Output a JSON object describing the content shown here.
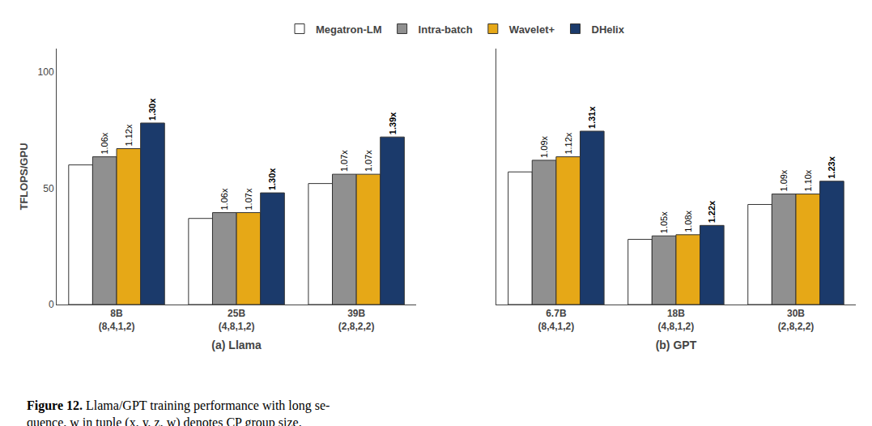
{
  "chart_data": [
    {
      "type": "bar",
      "title": "(a) Llama",
      "ylabel": "TFLOPS/GPU",
      "categories": [
        "8B\n(8,4,1,2)",
        "25B\n(4,8,1,2)",
        "39B\n(2,8,2,2)"
      ],
      "series": [
        {
          "name": "Megatron-LM",
          "color": "#ffffff",
          "values": [
            60.0,
            37.0,
            52.0
          ]
        },
        {
          "name": "Intra-batch",
          "color": "#909090",
          "values": [
            63.5,
            39.5,
            56.0
          ],
          "annotations": [
            "1.06x",
            "1.06x",
            "1.07x"
          ]
        },
        {
          "name": "Wavelet+",
          "color": "#e6a817",
          "values": [
            67.0,
            39.5,
            56.0
          ],
          "annotations": [
            "1.12x",
            "1.07x",
            "1.07x"
          ]
        },
        {
          "name": "DHelix",
          "color": "#1b3a6b",
          "values": [
            78.0,
            48.0,
            72.0
          ],
          "annotations": [
            "1.30x",
            "1.30x",
            "1.39x"
          ]
        }
      ],
      "ylim": [
        0,
        110
      ],
      "yticks": [
        0,
        50,
        100
      ],
      "grid": false,
      "legend": "top"
    },
    {
      "type": "bar",
      "title": "(b) GPT",
      "categories": [
        "6.7B\n(8,4,1,2)",
        "18B\n(4,8,1,2)",
        "30B\n(2,8,2,2)"
      ],
      "series": [
        {
          "name": "Megatron-LM",
          "color": "#ffffff",
          "values": [
            57.0,
            28.0,
            43.0
          ]
        },
        {
          "name": "Intra-batch",
          "color": "#909090",
          "values": [
            62.0,
            29.5,
            47.5
          ],
          "annotations": [
            "1.09x",
            "1.05x",
            "1.09x"
          ]
        },
        {
          "name": "Wavelet+",
          "color": "#e6a817",
          "values": [
            63.5,
            30.0,
            47.5
          ],
          "annotations": [
            "1.12x",
            "1.08x",
            "1.10x"
          ]
        },
        {
          "name": "DHelix",
          "color": "#1b3a6b",
          "values": [
            74.5,
            34.0,
            53.0
          ],
          "annotations": [
            "1.31x",
            "1.22x",
            "1.23x"
          ]
        }
      ],
      "ylim": [
        0,
        110
      ],
      "yticks": [
        0,
        50,
        100
      ],
      "grid": false,
      "legend": "top",
      "tick_labels": "x"
    }
  ],
  "caption_bold": "Figure 12.",
  "caption": "Llama/GPT training performance with long se-\nquence. w in tuple (x, y, z, w) denotes CP group size."
}
